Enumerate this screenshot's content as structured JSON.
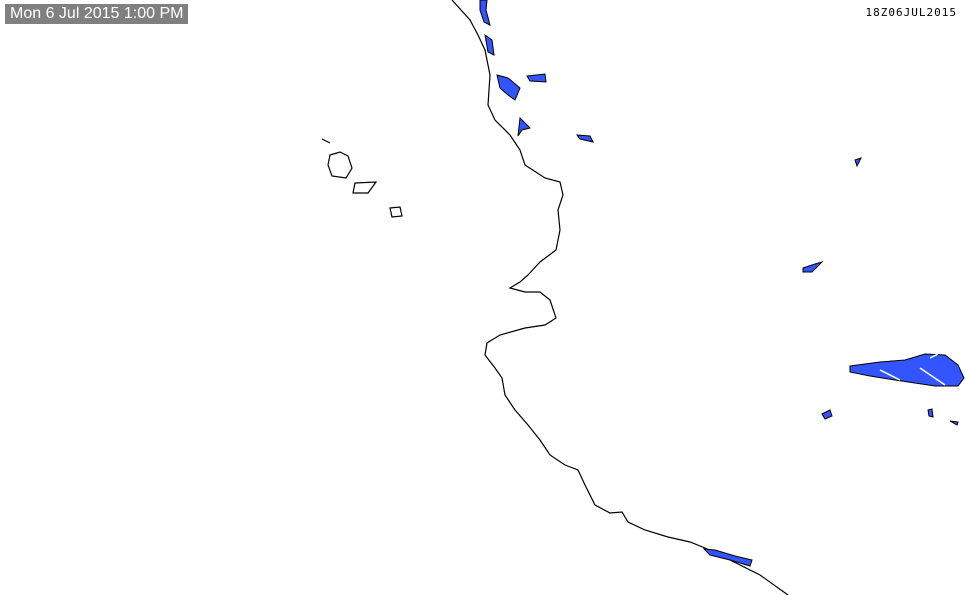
{
  "timestamp_label": "Mon 6 Jul 2015 1:00 PM",
  "valid_time_code": "18Z06JUL2015",
  "colors": {
    "precip": "#3355ff",
    "coastline": "#000000",
    "timestamp_bg": "#808080"
  }
}
